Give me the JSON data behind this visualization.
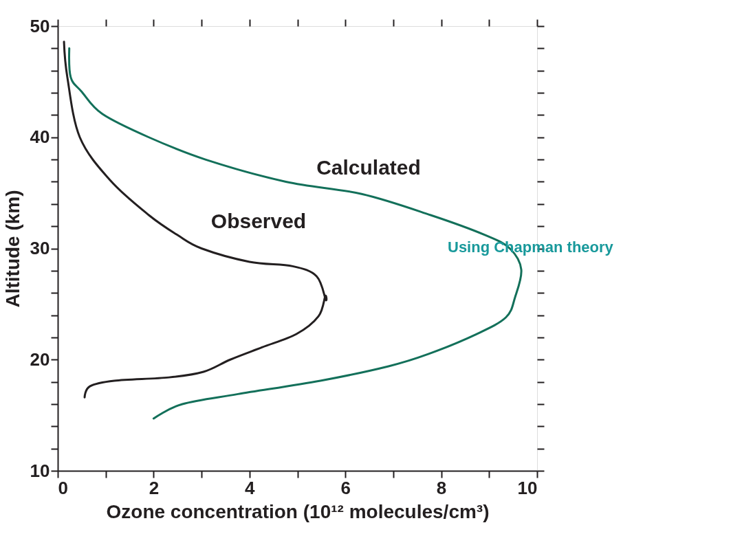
{
  "chart_data": {
    "type": "line",
    "xlabel": "Ozone concentration (10¹² molecules/cm³)",
    "ylabel": "Altitude (km)",
    "xlim": [
      0,
      10
    ],
    "ylim": [
      10,
      50
    ],
    "xticks": [
      0,
      {
        "value": 1,
        "label": null
      },
      2,
      {
        "value": 3,
        "label": null
      },
      4,
      {
        "value": 5,
        "label": null
      },
      6,
      {
        "value": 7,
        "label": null
      },
      8,
      {
        "value": 9,
        "label": null
      },
      10
    ],
    "yticks": [
      10,
      {
        "value": 12,
        "label": null
      },
      {
        "value": 14,
        "label": null
      },
      {
        "value": 16,
        "label": null
      },
      {
        "value": 18,
        "label": null
      },
      20,
      {
        "value": 22,
        "label": null
      },
      {
        "value": 24,
        "label": null
      },
      {
        "value": 26,
        "label": null
      },
      {
        "value": 28,
        "label": null
      },
      30,
      {
        "value": 32,
        "label": null
      },
      {
        "value": 34,
        "label": null
      },
      {
        "value": 36,
        "label": null
      },
      {
        "value": 38,
        "label": null
      },
      40,
      {
        "value": 42,
        "label": null
      },
      {
        "value": 44,
        "label": null
      },
      {
        "value": 46,
        "label": null
      },
      {
        "value": 48,
        "label": null
      },
      50
    ],
    "grid": false,
    "marker": "none",
    "line_style": "solid",
    "series": [
      {
        "color": "#231f20",
        "x": [
          0.13,
          0.2,
          0.46,
          1.1,
          1.9,
          2.5,
          3.0,
          4.0,
          4.9,
          5.4,
          5.59,
          5.58,
          5.44,
          4.98,
          4.26,
          3.6,
          3.04,
          2.32,
          1.18,
          0.67,
          0.56
        ],
        "values": [
          48.6,
          45.4,
          40.0,
          36.1,
          33.0,
          31.2,
          30.0,
          28.8,
          28.4,
          27.5,
          25.4,
          25.7,
          23.9,
          22.3,
          21.1,
          20.0,
          18.9,
          18.4,
          18.1,
          17.6,
          16.6
        ]
      },
      {
        "color": "#13705a",
        "x": [
          0.24,
          0.27,
          0.5,
          0.93,
          1.9,
          3.08,
          4.76,
          6.34,
          7.78,
          8.92,
          9.43,
          9.67,
          9.54,
          9.35,
          8.74,
          7.73,
          6.9,
          5.48,
          3.76,
          2.6,
          2.0
        ],
        "values": [
          48.0,
          45.4,
          44.1,
          42.1,
          40.0,
          38.0,
          36.0,
          34.9,
          33.0,
          31.2,
          30.0,
          28.1,
          25.6,
          23.8,
          22.3,
          20.5,
          19.4,
          18.1,
          16.9,
          16.0,
          14.7
        ]
      }
    ],
    "annotations": [
      "Calculated",
      "Observed",
      "Using Chapman theory"
    ]
  }
}
